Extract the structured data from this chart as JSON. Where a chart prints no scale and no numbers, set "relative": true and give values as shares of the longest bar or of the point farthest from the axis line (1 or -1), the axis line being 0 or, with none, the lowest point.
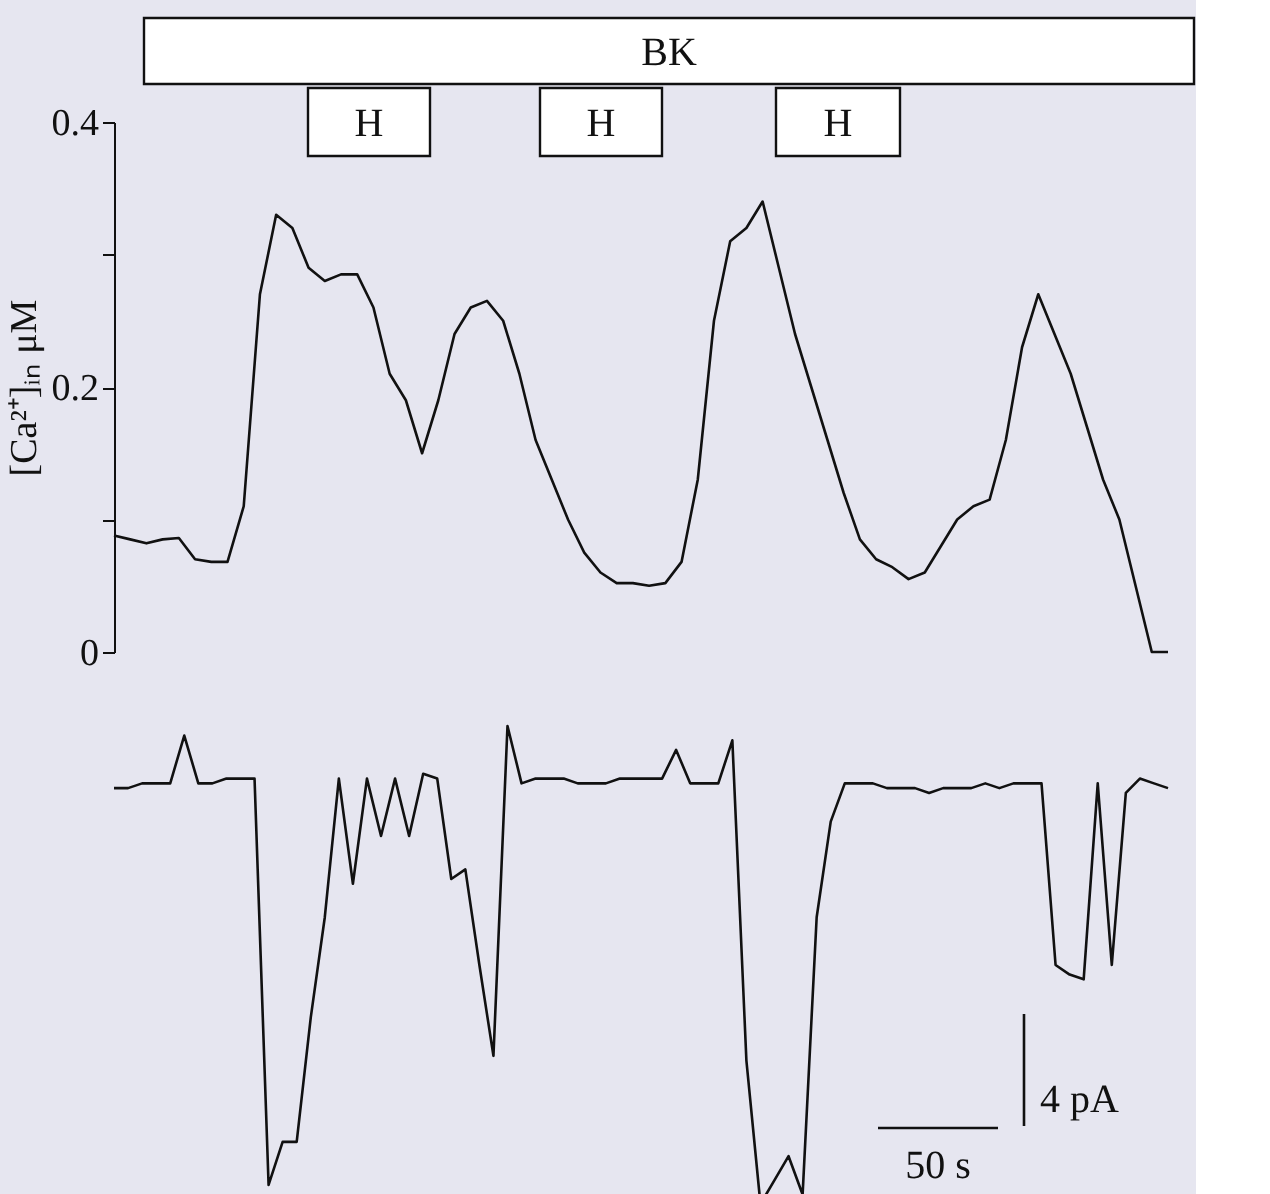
{
  "chart_data": [
    {
      "type": "line",
      "ylabel": "[Ca²⁺]ᵢₙ μM",
      "ylim": [
        0,
        0.4
      ],
      "yticks": [
        0,
        {
          "value": 0.1,
          "label": null
        },
        0.2,
        {
          "value": 0.3,
          "label": null
        },
        0.4
      ],
      "tick_labels": "y",
      "annotations": [
        "BK",
        "H",
        "H",
        "H"
      ],
      "categories": [
        null,
        null,
        null,
        null,
        null,
        null,
        null,
        null,
        null,
        null,
        null,
        null,
        null,
        null,
        null,
        null,
        null,
        null,
        null,
        null,
        null,
        null,
        null,
        null,
        null,
        null,
        null,
        null,
        null,
        null,
        null,
        null,
        null,
        null,
        null,
        null,
        null,
        null,
        null,
        null,
        null,
        null,
        null,
        null,
        null,
        null,
        null,
        null,
        null,
        null,
        null,
        null,
        null,
        null,
        null,
        null,
        null,
        null,
        null,
        null,
        null,
        null,
        null,
        null,
        null,
        null
      ],
      "series": [
        {
          "color": "#111111",
          "values": [
            0.088,
            0.085,
            0.082,
            0.085,
            0.086,
            0.07,
            0.068,
            0.068,
            0.11,
            0.27,
            0.33,
            0.32,
            0.29,
            0.28,
            0.285,
            0.285,
            0.26,
            0.21,
            0.19,
            0.15,
            0.19,
            0.24,
            0.26,
            0.265,
            0.25,
            0.21,
            0.16,
            0.13,
            0.1,
            0.075,
            0.06,
            0.052,
            0.052,
            0.05,
            0.052,
            0.068,
            0.13,
            0.25,
            0.31,
            0.32,
            0.34,
            0.29,
            0.24,
            0.2,
            0.16,
            0.12,
            0.085,
            0.07,
            0.064,
            0.055,
            0.06,
            0.08,
            0.1,
            0.11,
            0.115,
            0.16,
            0.23,
            0.27,
            0.24,
            0.21,
            0.17,
            0.13,
            0.1,
            0.05,
            0.0,
            0.0
          ]
        }
      ]
    },
    {
      "type": "line",
      "relative": true,
      "tick_labels": false,
      "annotations": [
        "4 pA",
        "50 s"
      ],
      "categories": [
        null,
        null,
        null,
        null,
        null,
        null,
        null,
        null,
        null,
        null,
        null,
        null,
        null,
        null,
        null,
        null,
        null,
        null,
        null,
        null,
        null,
        null,
        null,
        null,
        null,
        null,
        null,
        null,
        null,
        null,
        null,
        null,
        null,
        null,
        null,
        null,
        null,
        null,
        null,
        null,
        null,
        null,
        null,
        null,
        null,
        null,
        null,
        null,
        null,
        null,
        null,
        null,
        null,
        null,
        null,
        null,
        null,
        null,
        null,
        null,
        null,
        null,
        null,
        null,
        null,
        null,
        null,
        null,
        null,
        null,
        null,
        null,
        null,
        null,
        null,
        null
      ],
      "series": [
        {
          "color": "#111111",
          "values": [
            0.87,
            0.87,
            0.88,
            0.88,
            0.88,
            0.98,
            0.88,
            0.88,
            0.89,
            0.89,
            0.89,
            0.04,
            0.13,
            0.13,
            0.39,
            0.6,
            0.89,
            0.67,
            0.89,
            0.77,
            0.89,
            0.77,
            0.9,
            0.89,
            0.68,
            0.7,
            0.5,
            0.31,
            1.0,
            0.88,
            0.89,
            0.89,
            0.89,
            0.88,
            0.88,
            0.88,
            0.89,
            0.89,
            0.89,
            0.89,
            0.95,
            0.88,
            0.88,
            0.88,
            0.97,
            0.3,
            0.0,
            0.05,
            0.1,
            0.02,
            0.6,
            0.8,
            0.88,
            0.88,
            0.88,
            0.87,
            0.87,
            0.87,
            0.86,
            0.87,
            0.87,
            0.87,
            0.88,
            0.87,
            0.88,
            0.88,
            0.88,
            0.5,
            0.48,
            0.47,
            0.88,
            0.5,
            0.86,
            0.89,
            0.88,
            0.87
          ]
        }
      ]
    }
  ]
}
